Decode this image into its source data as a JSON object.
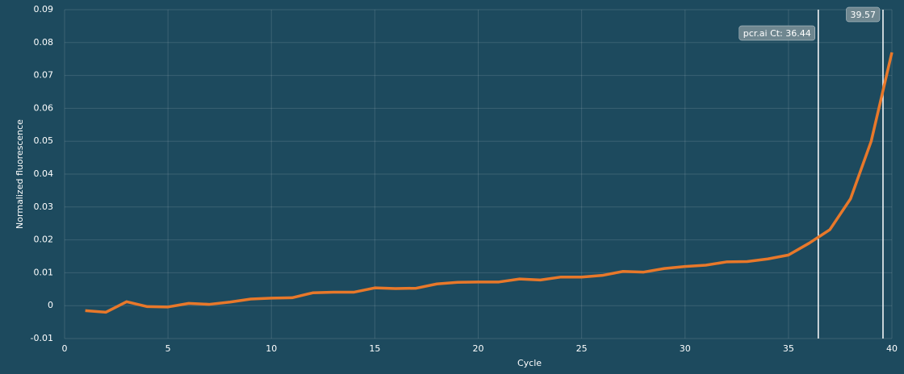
{
  "chart_data": {
    "type": "line",
    "xlabel": "Cycle",
    "ylabel": "Normalized fluorescence",
    "x": [
      1,
      2,
      3,
      4,
      5,
      6,
      7,
      8,
      9,
      10,
      11,
      12,
      13,
      14,
      15,
      16,
      17,
      18,
      19,
      20,
      21,
      22,
      23,
      24,
      25,
      26,
      27,
      28,
      29,
      30,
      31,
      32,
      33,
      34,
      35,
      36,
      37,
      38,
      39,
      40
    ],
    "series": [
      {
        "color": "#e8782a",
        "values": [
          -0.0015,
          -0.002,
          0.0012,
          -0.0003,
          -0.0004,
          0.0007,
          0.0004,
          0.0011,
          0.002,
          0.0023,
          0.0024,
          0.0039,
          0.0041,
          0.0041,
          0.0054,
          0.0052,
          0.0053,
          0.0066,
          0.0071,
          0.0072,
          0.0072,
          0.0081,
          0.0078,
          0.0087,
          0.0087,
          0.0092,
          0.0104,
          0.0102,
          0.0113,
          0.0119,
          0.0123,
          0.0133,
          0.0134,
          0.0142,
          0.0154,
          0.019,
          0.0231,
          0.0325,
          0.05,
          0.077
        ]
      }
    ],
    "xlim": [
      0,
      40
    ],
    "xticks": [
      0,
      5,
      10,
      15,
      20,
      25,
      30,
      35,
      40
    ],
    "ylim": [
      -0.01,
      0.09
    ],
    "yticks": [
      -0.01,
      0,
      0.01,
      0.02,
      0.03,
      0.04,
      0.05,
      0.06,
      0.07,
      0.08,
      0.09
    ],
    "grid": true,
    "annotations": [
      {
        "x": 36.44,
        "label": "pcr.ai Ct: 36.44"
      },
      {
        "x": 39.57,
        "label": "39.57"
      }
    ]
  }
}
